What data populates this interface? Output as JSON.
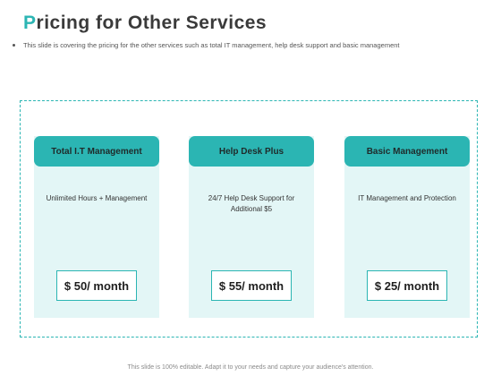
{
  "slide": {
    "title_first_letter": "P",
    "title_rest": "ricing for Other Services",
    "subtitle": "This slide is covering the pricing for the other services such as total IT management, help desk support and basic management"
  },
  "cards": [
    {
      "header": "Total I.T Management",
      "description": "Unlimited Hours + Management",
      "price": "$ 50/ month"
    },
    {
      "header": "Help Desk Plus",
      "description": "24/7 Help Desk Support for Additional $5",
      "price": "$ 55/ month"
    },
    {
      "header": "Basic Management",
      "description": "IT Management and Protection",
      "price": "$ 25/ month"
    }
  ],
  "footer": "This slide is 100% editable. Adapt it to your needs and capture your audience's attention.",
  "colors": {
    "accent": "#2bb5b3",
    "card_background": "#e3f6f6",
    "title_text": "#3a3a3a"
  }
}
